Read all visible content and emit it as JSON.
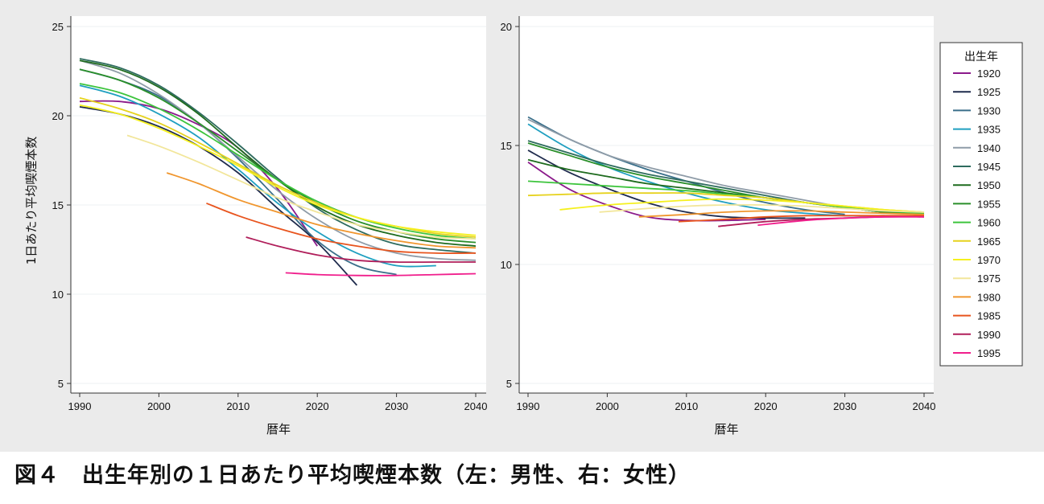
{
  "caption": "図４　出生年別の１日あたり平均喫煙本数（左：男性、右：女性）",
  "legend": {
    "title": "出生年",
    "entries": [
      {
        "label": "1920",
        "color": "#8b1a8b"
      },
      {
        "label": "1925",
        "color": "#1f2b4d"
      },
      {
        "label": "1930",
        "color": "#3a6f8a"
      },
      {
        "label": "1935",
        "color": "#1f9fc0"
      },
      {
        "label": "1940",
        "color": "#8f9ca8"
      },
      {
        "label": "1945",
        "color": "#2e6b5e"
      },
      {
        "label": "1950",
        "color": "#1e6b1e"
      },
      {
        "label": "1955",
        "color": "#2a8f2a"
      },
      {
        "label": "1960",
        "color": "#3cc43c"
      },
      {
        "label": "1965",
        "color": "#e6d21e"
      },
      {
        "label": "1970",
        "color": "#f5f01e"
      },
      {
        "label": "1975",
        "color": "#f2e69a"
      },
      {
        "label": "1980",
        "color": "#f0962e"
      },
      {
        "label": "1985",
        "color": "#e8541e"
      },
      {
        "label": "1990",
        "color": "#b01e5a"
      },
      {
        "label": "1995",
        "color": "#f01e8c"
      }
    ]
  },
  "chart_data": [
    {
      "type": "line",
      "panel": "left",
      "xlabel": "暦年",
      "ylabel": "1日あたり平均喫煙本数",
      "xlim": [
        1990,
        2040
      ],
      "ylim": [
        5,
        25
      ],
      "xticks": [
        "1990",
        "2000",
        "2010",
        "2020",
        "2030",
        "2040"
      ],
      "yticks": [
        "5",
        "10",
        "15",
        "20",
        "25"
      ],
      "series": [
        {
          "name": "1920",
          "x": [
            1990,
            1995,
            2000,
            2005,
            2010,
            2015,
            2020
          ],
          "y": [
            20.8,
            20.8,
            20.4,
            19.5,
            18.2,
            15.9,
            12.7
          ]
        },
        {
          "name": "1925",
          "x": [
            1990,
            1995,
            2000,
            2005,
            2010,
            2015,
            2020,
            2025
          ],
          "y": [
            20.5,
            20.1,
            19.4,
            18.3,
            16.8,
            14.8,
            12.9,
            10.5
          ]
        },
        {
          "name": "1930",
          "x": [
            1990,
            1995,
            2000,
            2005,
            2010,
            2015,
            2020,
            2025,
            2030
          ],
          "y": [
            22.6,
            22.0,
            21.1,
            19.6,
            17.6,
            15.3,
            13.0,
            11.6,
            11.1
          ]
        },
        {
          "name": "1935",
          "x": [
            1990,
            1995,
            2000,
            2005,
            2010,
            2015,
            2020,
            2025,
            2030,
            2035
          ],
          "y": [
            21.7,
            21.1,
            20.1,
            18.8,
            17.0,
            15.1,
            13.5,
            12.3,
            11.6,
            11.6
          ]
        },
        {
          "name": "1940",
          "x": [
            1990,
            1995,
            2000,
            2005,
            2010,
            2015,
            2020,
            2025,
            2030,
            2035,
            2040
          ],
          "y": [
            23.1,
            22.4,
            21.2,
            19.6,
            17.7,
            15.8,
            14.2,
            13.0,
            12.3,
            12.0,
            11.9
          ]
        },
        {
          "name": "1945",
          "x": [
            1990,
            1995,
            2000,
            2005,
            2010,
            2015,
            2020,
            2025,
            2030,
            2035,
            2040
          ],
          "y": [
            23.2,
            22.7,
            21.7,
            20.2,
            18.4,
            16.5,
            14.8,
            13.6,
            12.8,
            12.5,
            12.3
          ]
        },
        {
          "name": "1950",
          "x": [
            1990,
            1995,
            2000,
            2005,
            2010,
            2015,
            2020,
            2025,
            2030,
            2035,
            2040
          ],
          "y": [
            23.1,
            22.6,
            21.6,
            20.1,
            18.2,
            16.4,
            14.9,
            13.9,
            13.3,
            12.9,
            12.7
          ]
        },
        {
          "name": "1955",
          "x": [
            1990,
            1995,
            2000,
            2005,
            2010,
            2015,
            2020,
            2025,
            2030,
            2035,
            2040
          ],
          "y": [
            22.6,
            22.0,
            21.0,
            19.6,
            18.0,
            16.4,
            15.1,
            14.1,
            13.5,
            13.1,
            12.9
          ]
        },
        {
          "name": "1960",
          "x": [
            1990,
            1995,
            2000,
            2005,
            2010,
            2015,
            2020,
            2025,
            2030,
            2035,
            2040
          ],
          "y": [
            21.8,
            21.3,
            20.4,
            19.2,
            17.8,
            16.4,
            15.2,
            14.3,
            13.7,
            13.3,
            13.1
          ]
        },
        {
          "name": "1965",
          "x": [
            1990,
            1995,
            2000,
            2005,
            2010,
            2015,
            2020,
            2025,
            2030,
            2035,
            2040
          ],
          "y": [
            21.0,
            20.4,
            19.6,
            18.5,
            17.3,
            16.1,
            15.1,
            14.3,
            13.8,
            13.4,
            13.2
          ]
        },
        {
          "name": "1970",
          "x": [
            1990,
            1995,
            2000,
            2005,
            2010,
            2015,
            2020,
            2025,
            2030,
            2035,
            2040
          ],
          "y": [
            20.6,
            20.1,
            19.3,
            18.3,
            17.2,
            16.0,
            15.0,
            14.3,
            13.8,
            13.5,
            13.3
          ]
        },
        {
          "name": "1975",
          "x": [
            1996,
            2000,
            2005,
            2010,
            2015,
            2020,
            2025,
            2030,
            2035,
            2040
          ],
          "y": [
            18.9,
            18.3,
            17.4,
            16.4,
            15.4,
            14.6,
            13.9,
            13.5,
            13.2,
            13.1
          ]
        },
        {
          "name": "1980",
          "x": [
            2001,
            2005,
            2010,
            2015,
            2020,
            2025,
            2030,
            2035,
            2040
          ],
          "y": [
            16.8,
            16.2,
            15.3,
            14.6,
            13.9,
            13.4,
            13.0,
            12.7,
            12.6
          ]
        },
        {
          "name": "1985",
          "x": [
            2006,
            2010,
            2015,
            2020,
            2025,
            2030,
            2035,
            2040
          ],
          "y": [
            15.1,
            14.4,
            13.7,
            13.1,
            12.7,
            12.4,
            12.3,
            12.3
          ]
        },
        {
          "name": "1990",
          "x": [
            2011,
            2015,
            2020,
            2025,
            2030,
            2035,
            2040
          ],
          "y": [
            13.2,
            12.7,
            12.2,
            11.9,
            11.8,
            11.8,
            11.8
          ]
        },
        {
          "name": "1995",
          "x": [
            2016,
            2020,
            2025,
            2030,
            2035,
            2040
          ],
          "y": [
            11.2,
            11.1,
            11.05,
            11.05,
            11.1,
            11.15
          ]
        }
      ]
    },
    {
      "type": "line",
      "panel": "right",
      "xlabel": "暦年",
      "ylabel": "",
      "xlim": [
        1990,
        2040
      ],
      "ylim": [
        5,
        20
      ],
      "xticks": [
        "1990",
        "2000",
        "2010",
        "2020",
        "2030",
        "2040"
      ],
      "yticks": [
        "5",
        "10",
        "15",
        "20"
      ],
      "series": [
        {
          "name": "1920",
          "x": [
            1990,
            1995,
            2000,
            2005,
            2010,
            2015,
            2020
          ],
          "y": [
            14.3,
            13.2,
            12.5,
            12.0,
            11.85,
            11.85,
            11.9
          ]
        },
        {
          "name": "1925",
          "x": [
            1990,
            1995,
            2000,
            2005,
            2010,
            2015,
            2020,
            2025
          ],
          "y": [
            14.8,
            13.9,
            13.2,
            12.6,
            12.2,
            12.0,
            11.95,
            11.95
          ]
        },
        {
          "name": "1930",
          "x": [
            1990,
            1995,
            2000,
            2005,
            2010,
            2015,
            2020,
            2025,
            2030
          ],
          "y": [
            16.2,
            15.3,
            14.6,
            14.0,
            13.5,
            13.0,
            12.6,
            12.3,
            12.1
          ]
        },
        {
          "name": "1935",
          "x": [
            1990,
            1995,
            2000,
            2005,
            2010,
            2015,
            2020,
            2025,
            2030,
            2035
          ],
          "y": [
            15.9,
            14.9,
            14.1,
            13.5,
            13.0,
            12.6,
            12.3,
            12.15,
            12.05,
            12.05
          ]
        },
        {
          "name": "1940",
          "x": [
            1990,
            1995,
            2000,
            2005,
            2010,
            2015,
            2020,
            2025,
            2030,
            2035,
            2040
          ],
          "y": [
            16.1,
            15.3,
            14.6,
            14.1,
            13.7,
            13.3,
            13.0,
            12.7,
            12.4,
            12.2,
            12.1
          ]
        },
        {
          "name": "1945",
          "x": [
            1990,
            1995,
            2000,
            2005,
            2010,
            2015,
            2020,
            2025,
            2030,
            2035,
            2040
          ],
          "y": [
            15.2,
            14.7,
            14.2,
            13.8,
            13.5,
            13.2,
            12.9,
            12.6,
            12.4,
            12.2,
            12.1
          ]
        },
        {
          "name": "1950",
          "x": [
            1990,
            1995,
            2000,
            2005,
            2010,
            2015,
            2020,
            2025,
            2030,
            2035,
            2040
          ],
          "y": [
            14.4,
            14.0,
            13.7,
            13.4,
            13.2,
            13.0,
            12.8,
            12.6,
            12.4,
            12.2,
            12.1
          ]
        },
        {
          "name": "1955",
          "x": [
            1990,
            1995,
            2000,
            2005,
            2010,
            2015,
            2020,
            2025,
            2030,
            2035,
            2040
          ],
          "y": [
            15.1,
            14.6,
            14.1,
            13.7,
            13.4,
            13.1,
            12.8,
            12.6,
            12.4,
            12.2,
            12.1
          ]
        },
        {
          "name": "1960",
          "x": [
            1990,
            1995,
            2000,
            2005,
            2010,
            2015,
            2020,
            2025,
            2030,
            2035,
            2040
          ],
          "y": [
            13.5,
            13.4,
            13.3,
            13.2,
            13.1,
            12.95,
            12.8,
            12.6,
            12.4,
            12.25,
            12.15
          ]
        },
        {
          "name": "1965",
          "x": [
            1990,
            1995,
            2000,
            2005,
            2010,
            2015,
            2020,
            2025,
            2030,
            2035,
            2040
          ],
          "y": [
            12.9,
            12.95,
            13.0,
            13.0,
            13.0,
            12.9,
            12.8,
            12.6,
            12.45,
            12.3,
            12.2
          ]
        },
        {
          "name": "1970",
          "x": [
            1994,
            2000,
            2005,
            2010,
            2015,
            2020,
            2025,
            2030,
            2035,
            2040
          ],
          "y": [
            12.3,
            12.5,
            12.6,
            12.7,
            12.75,
            12.7,
            12.6,
            12.45,
            12.3,
            12.2
          ]
        },
        {
          "name": "1975",
          "x": [
            1999,
            2005,
            2010,
            2015,
            2020,
            2025,
            2030,
            2035,
            2040
          ],
          "y": [
            12.2,
            12.35,
            12.45,
            12.5,
            12.5,
            12.45,
            12.35,
            12.25,
            12.2
          ]
        },
        {
          "name": "1980",
          "x": [
            2004,
            2010,
            2015,
            2020,
            2025,
            2030,
            2035,
            2040
          ],
          "y": [
            12.0,
            12.1,
            12.2,
            12.25,
            12.25,
            12.2,
            12.15,
            12.1
          ]
        },
        {
          "name": "1985",
          "x": [
            2009,
            2015,
            2020,
            2025,
            2030,
            2035,
            2040
          ],
          "y": [
            11.8,
            11.9,
            12.0,
            12.05,
            12.05,
            12.05,
            12.05
          ]
        },
        {
          "name": "1990",
          "x": [
            2014,
            2020,
            2025,
            2030,
            2035,
            2040
          ],
          "y": [
            11.6,
            11.8,
            11.9,
            11.95,
            12.0,
            12.0
          ]
        },
        {
          "name": "1995",
          "x": [
            2019,
            2025,
            2030,
            2035,
            2040
          ],
          "y": [
            11.65,
            11.85,
            11.95,
            12.0,
            12.0
          ]
        }
      ]
    }
  ]
}
